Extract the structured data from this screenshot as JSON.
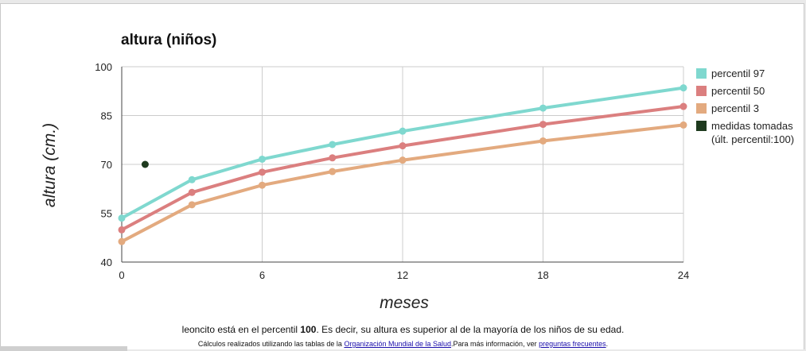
{
  "chart_data": {
    "type": "line",
    "title": "altura (niños)",
    "xlabel": "meses",
    "ylabel": "altura (cm.)",
    "xlim": [
      0,
      24
    ],
    "ylim": [
      40,
      100
    ],
    "x_ticks": [
      0,
      6,
      12,
      18,
      24
    ],
    "y_ticks": [
      40,
      55,
      70,
      85,
      100
    ],
    "grid": true,
    "legend_position": "right",
    "series": [
      {
        "name": "percentil 97",
        "color": "#7fd8cf",
        "points": [
          [
            0,
            53.5
          ],
          [
            3,
            65.3
          ],
          [
            6,
            71.6
          ],
          [
            9,
            76.1
          ],
          [
            12,
            80.2
          ],
          [
            18,
            87.3
          ],
          [
            24,
            93.5
          ]
        ]
      },
      {
        "name": "percentil 50",
        "color": "#db7f7f",
        "points": [
          [
            0,
            49.9
          ],
          [
            3,
            61.4
          ],
          [
            6,
            67.6
          ],
          [
            9,
            72.0
          ],
          [
            12,
            75.7
          ],
          [
            18,
            82.3
          ],
          [
            24,
            87.8
          ]
        ]
      },
      {
        "name": "percentil 3",
        "color": "#e3aa7f",
        "points": [
          [
            0,
            46.3
          ],
          [
            3,
            57.6
          ],
          [
            6,
            63.6
          ],
          [
            9,
            67.8
          ],
          [
            12,
            71.3
          ],
          [
            18,
            77.2
          ],
          [
            24,
            82.1
          ]
        ]
      },
      {
        "name": "medidas tomadas (últ. percentil:100)",
        "color": "#1e3a1e",
        "marker_only": true,
        "points": [
          [
            1,
            70
          ]
        ]
      }
    ]
  },
  "footer": {
    "line1_pre": "leoncito está en el percentil ",
    "line1_bold": "100",
    "line1_post": ". Es decir, su altura es superior al de la mayoría de los niños de su edad.",
    "line2_pre": "Cálculos realizados utilizando las tablas de la ",
    "line2_link1": "Organización Mundial de la Salud",
    "line2_mid": ".Para más información, ver ",
    "line2_link2": "preguntas frecuentes",
    "line2_post": "."
  }
}
